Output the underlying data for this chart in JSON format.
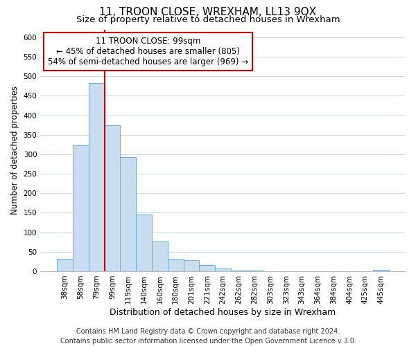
{
  "title": "11, TROON CLOSE, WREXHAM, LL13 9QX",
  "subtitle": "Size of property relative to detached houses in Wrexham",
  "xlabel": "Distribution of detached houses by size in Wrexham",
  "ylabel": "Number of detached properties",
  "footer_line1": "Contains HM Land Registry data © Crown copyright and database right 2024.",
  "footer_line2": "Contains public sector information licensed under the Open Government Licence v 3.0.",
  "bin_labels": [
    "38sqm",
    "58sqm",
    "79sqm",
    "99sqm",
    "119sqm",
    "140sqm",
    "160sqm",
    "180sqm",
    "201sqm",
    "221sqm",
    "242sqm",
    "262sqm",
    "282sqm",
    "303sqm",
    "323sqm",
    "343sqm",
    "364sqm",
    "384sqm",
    "404sqm",
    "425sqm",
    "445sqm"
  ],
  "bar_values": [
    32,
    323,
    483,
    375,
    292,
    145,
    76,
    31,
    29,
    16,
    7,
    1,
    1,
    0,
    0,
    0,
    0,
    0,
    0,
    0,
    3
  ],
  "bar_color": "#c8ddf0",
  "bar_edge_color": "#6aaed6",
  "red_line_after_index": 2,
  "highlight_line_color": "#cc0000",
  "ann_line1": "11 TROON CLOSE: 99sqm",
  "ann_line2": "← 45% of detached houses are smaller (805)",
  "ann_line3": "54% of semi-detached houses are larger (969) →",
  "annotation_box_edge_color": "#cc0000",
  "ylim": [
    0,
    620
  ],
  "yticks": [
    0,
    50,
    100,
    150,
    200,
    250,
    300,
    350,
    400,
    450,
    500,
    550,
    600
  ],
  "grid_color": "#c8d8e8",
  "background_color": "#ffffff",
  "title_fontsize": 11,
  "subtitle_fontsize": 9.5,
  "xlabel_fontsize": 9,
  "ylabel_fontsize": 8.5,
  "tick_fontsize": 7.5,
  "ann_fontsize": 8.5,
  "footer_fontsize": 7
}
